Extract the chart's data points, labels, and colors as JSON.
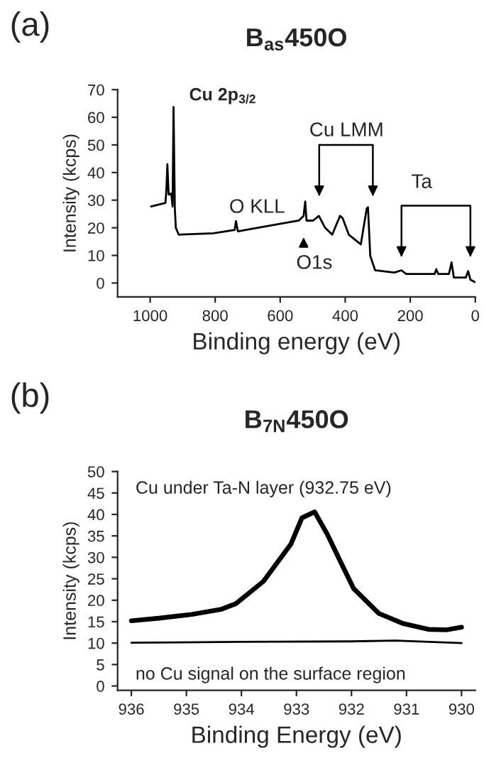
{
  "chart_data": [
    {
      "type": "line",
      "title": "B$_{as}$450O",
      "xlabel": "Binding energy (eV)",
      "ylabel": "Intensity (kcps)",
      "annotations": [
        "(a)",
        "Cu 2p$_{3/2}$",
        "Cu LMM",
        "O KLL",
        "O1s",
        "Ta"
      ],
      "xlim": [
        1100,
        0
      ],
      "xticks": [
        1000,
        800,
        600,
        400,
        200,
        0
      ],
      "ylim": [
        -5,
        70
      ],
      "yticks": [
        0,
        10,
        20,
        30,
        40,
        50,
        60,
        70
      ],
      "grid": false,
      "legend": false,
      "series": [
        {
          "color": "#000000",
          "x": [
            997,
            953,
            950,
            947,
            943,
            935,
            931,
            928,
            924,
            921,
            912,
            806,
            740,
            736,
            730,
            645,
            543,
            528,
            523,
            519,
            499,
            481,
            462,
            440,
            416,
            408,
            389,
            352,
            334,
            330,
            323,
            308,
            249,
            227,
            213,
            125,
            120,
            114,
            81,
            73,
            66,
            29,
            22,
            15,
            0
          ],
          "values": [
            27.7,
            29,
            33.7,
            43,
            32,
            32.4,
            27.7,
            63.7,
            27,
            20,
            17.5,
            18,
            19.2,
            22.4,
            18.7,
            20.5,
            22.6,
            24.3,
            29.5,
            22.6,
            22.6,
            24.3,
            20,
            17.5,
            24.3,
            23.5,
            17.5,
            14,
            26.9,
            27.4,
            9.8,
            4.6,
            3.8,
            4.6,
            3.3,
            3.3,
            5,
            3.3,
            3.3,
            7.5,
            2,
            2,
            4.3,
            1.2,
            0.3
          ]
        }
      ]
    },
    {
      "type": "line",
      "title": "B$_{7N}$450O",
      "xlabel": "Binding Energy (eV)",
      "ylabel": "Intensity (kcps)",
      "annotations": [
        "(b)",
        "Cu under Ta-N layer (932.75 eV)",
        "no Cu signal on the surface region"
      ],
      "xlim": [
        936.25,
        929.75
      ],
      "xticks": [
        936,
        935,
        934,
        933,
        932,
        931,
        930
      ],
      "ylim": [
        -1,
        50
      ],
      "yticks": [
        0,
        5,
        10,
        15,
        20,
        25,
        30,
        35,
        40,
        45,
        50
      ],
      "grid": false,
      "legend": false,
      "series": [
        {
          "color": "#000000",
          "x": [
            936,
            935.5,
            934.9,
            934.36,
            934.1,
            933.6,
            933.1,
            932.9,
            932.67,
            932.44,
            932.2,
            931.96,
            931.5,
            931.07,
            930.6,
            930.27,
            930
          ],
          "values": [
            15.2,
            15.8,
            16.7,
            17.9,
            19.2,
            24.4,
            33.1,
            39.2,
            40.6,
            35.4,
            29,
            22.7,
            16.9,
            14.6,
            13.2,
            13.1,
            13.7
          ]
        },
        {
          "color": "#000000",
          "x": [
            936,
            934,
            932,
            931.2,
            930
          ],
          "values": [
            10.1,
            10.3,
            10.4,
            10.6,
            10.0
          ]
        }
      ]
    }
  ]
}
